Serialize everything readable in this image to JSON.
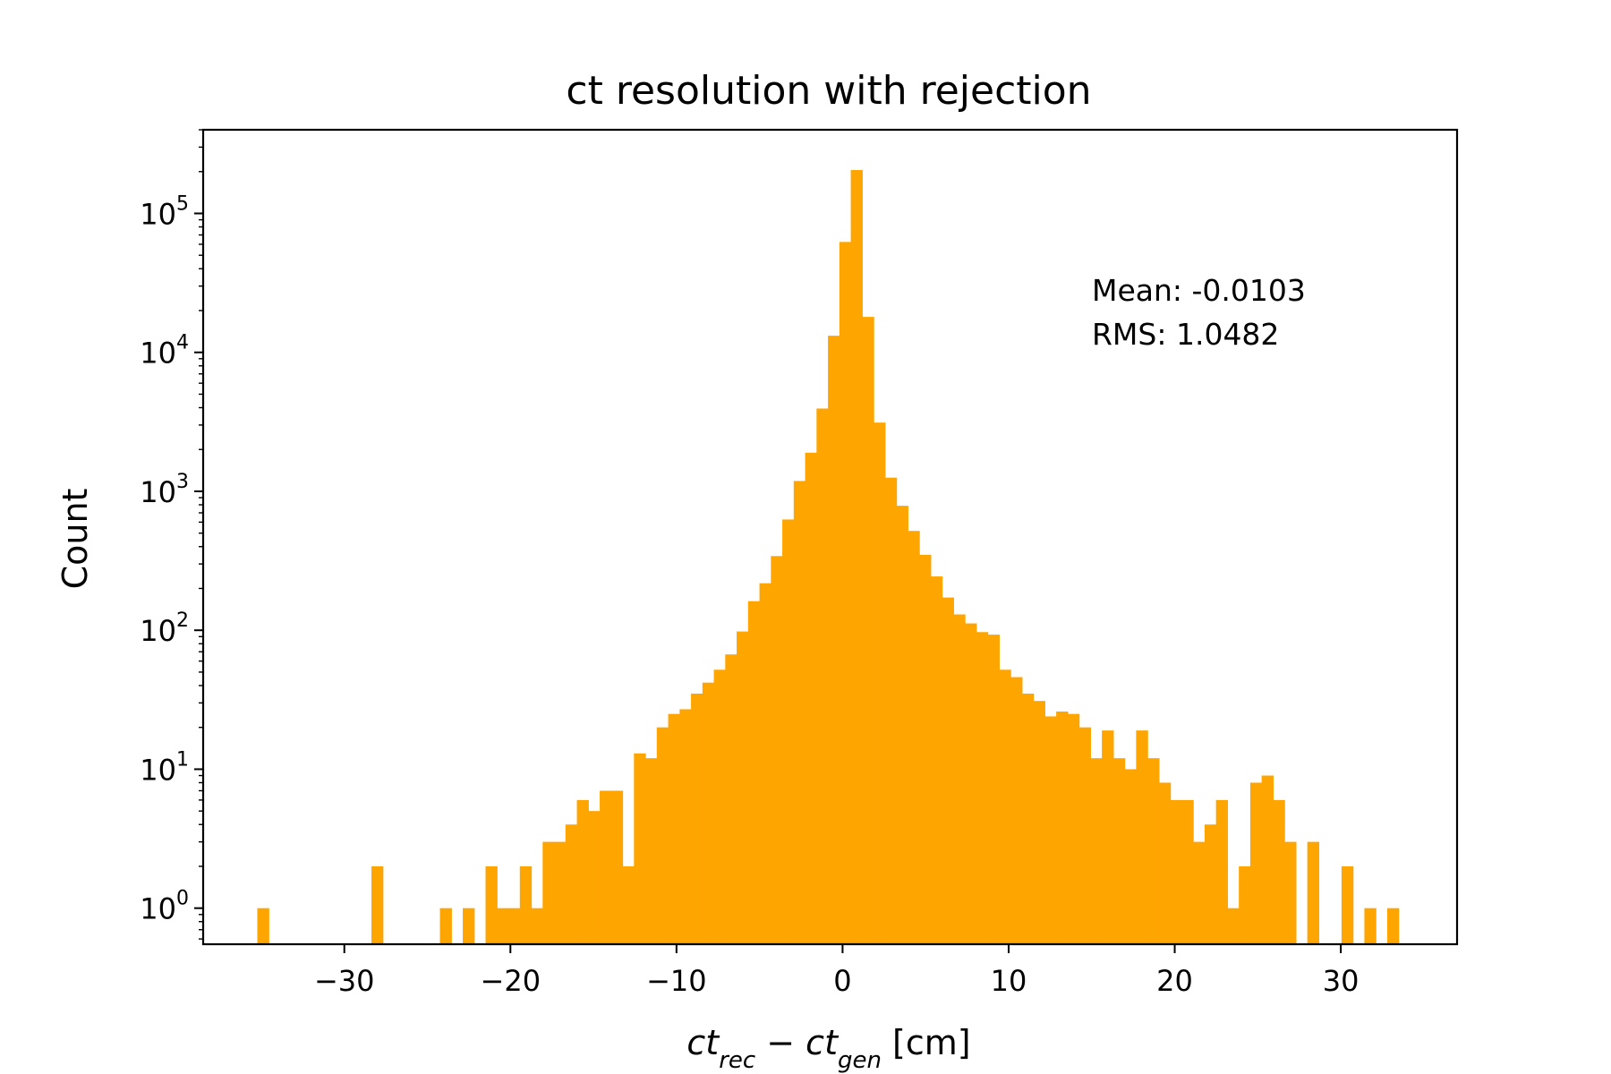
{
  "chart_data": {
    "type": "bar",
    "title": "ct resolution with rejection",
    "xlabel": {
      "parts": [
        {
          "text": "ct",
          "italic": true
        },
        {
          "text": "rec",
          "italic": true,
          "sub": true
        },
        {
          "text": " − "
        },
        {
          "text": "ct",
          "italic": true
        },
        {
          "text": "gen",
          "italic": true,
          "sub": true
        },
        {
          "text": "  [cm]"
        }
      ]
    },
    "ylabel": "Count",
    "yscale": "log",
    "xlim": [
      -38.5,
      37.0
    ],
    "ylim": [
      0.55,
      400000
    ],
    "color": "#ffa500",
    "x_ticks": [
      {
        "value": -30,
        "label": "−30"
      },
      {
        "value": -20,
        "label": "−20"
      },
      {
        "value": -10,
        "label": "−10"
      },
      {
        "value": 0,
        "label": "0"
      },
      {
        "value": 10,
        "label": "10"
      },
      {
        "value": 20,
        "label": "20"
      },
      {
        "value": 30,
        "label": "30"
      }
    ],
    "y_ticks": [
      {
        "value": 1,
        "base": "10",
        "exp": "0"
      },
      {
        "value": 10,
        "base": "10",
        "exp": "1"
      },
      {
        "value": 100,
        "base": "10",
        "exp": "2"
      },
      {
        "value": 1000,
        "base": "10",
        "exp": "3"
      },
      {
        "value": 10000,
        "base": "10",
        "exp": "4"
      },
      {
        "value": 100000,
        "base": "10",
        "exp": "5"
      }
    ],
    "bin_start": -35.24,
    "bin_width": 0.6872,
    "counts": [
      1,
      0,
      0,
      0,
      0,
      0,
      0,
      0,
      0,
      0,
      2,
      0,
      0,
      0,
      0,
      0,
      1,
      0,
      1,
      0,
      2,
      1,
      1,
      2,
      1,
      3,
      3,
      4,
      6,
      5,
      7,
      7,
      2,
      13,
      12,
      20,
      25,
      27,
      35,
      42,
      52,
      67,
      98,
      162,
      218,
      342,
      627,
      1187,
      1896,
      3943,
      13180,
      62342,
      205218,
      18000,
      3124,
      1254,
      787,
      519,
      349,
      244,
      172,
      130,
      112,
      97,
      93,
      52,
      46,
      35,
      31,
      24,
      26,
      25,
      20,
      12,
      19,
      12,
      10,
      19,
      12,
      8,
      6,
      6,
      3,
      4,
      6,
      1,
      2,
      8,
      9,
      6,
      3,
      0,
      3,
      0,
      0,
      2,
      0,
      1,
      0,
      1
    ],
    "annotation": {
      "mean": "Mean: -0.0103",
      "rms": "RMS: 1.0482"
    }
  }
}
